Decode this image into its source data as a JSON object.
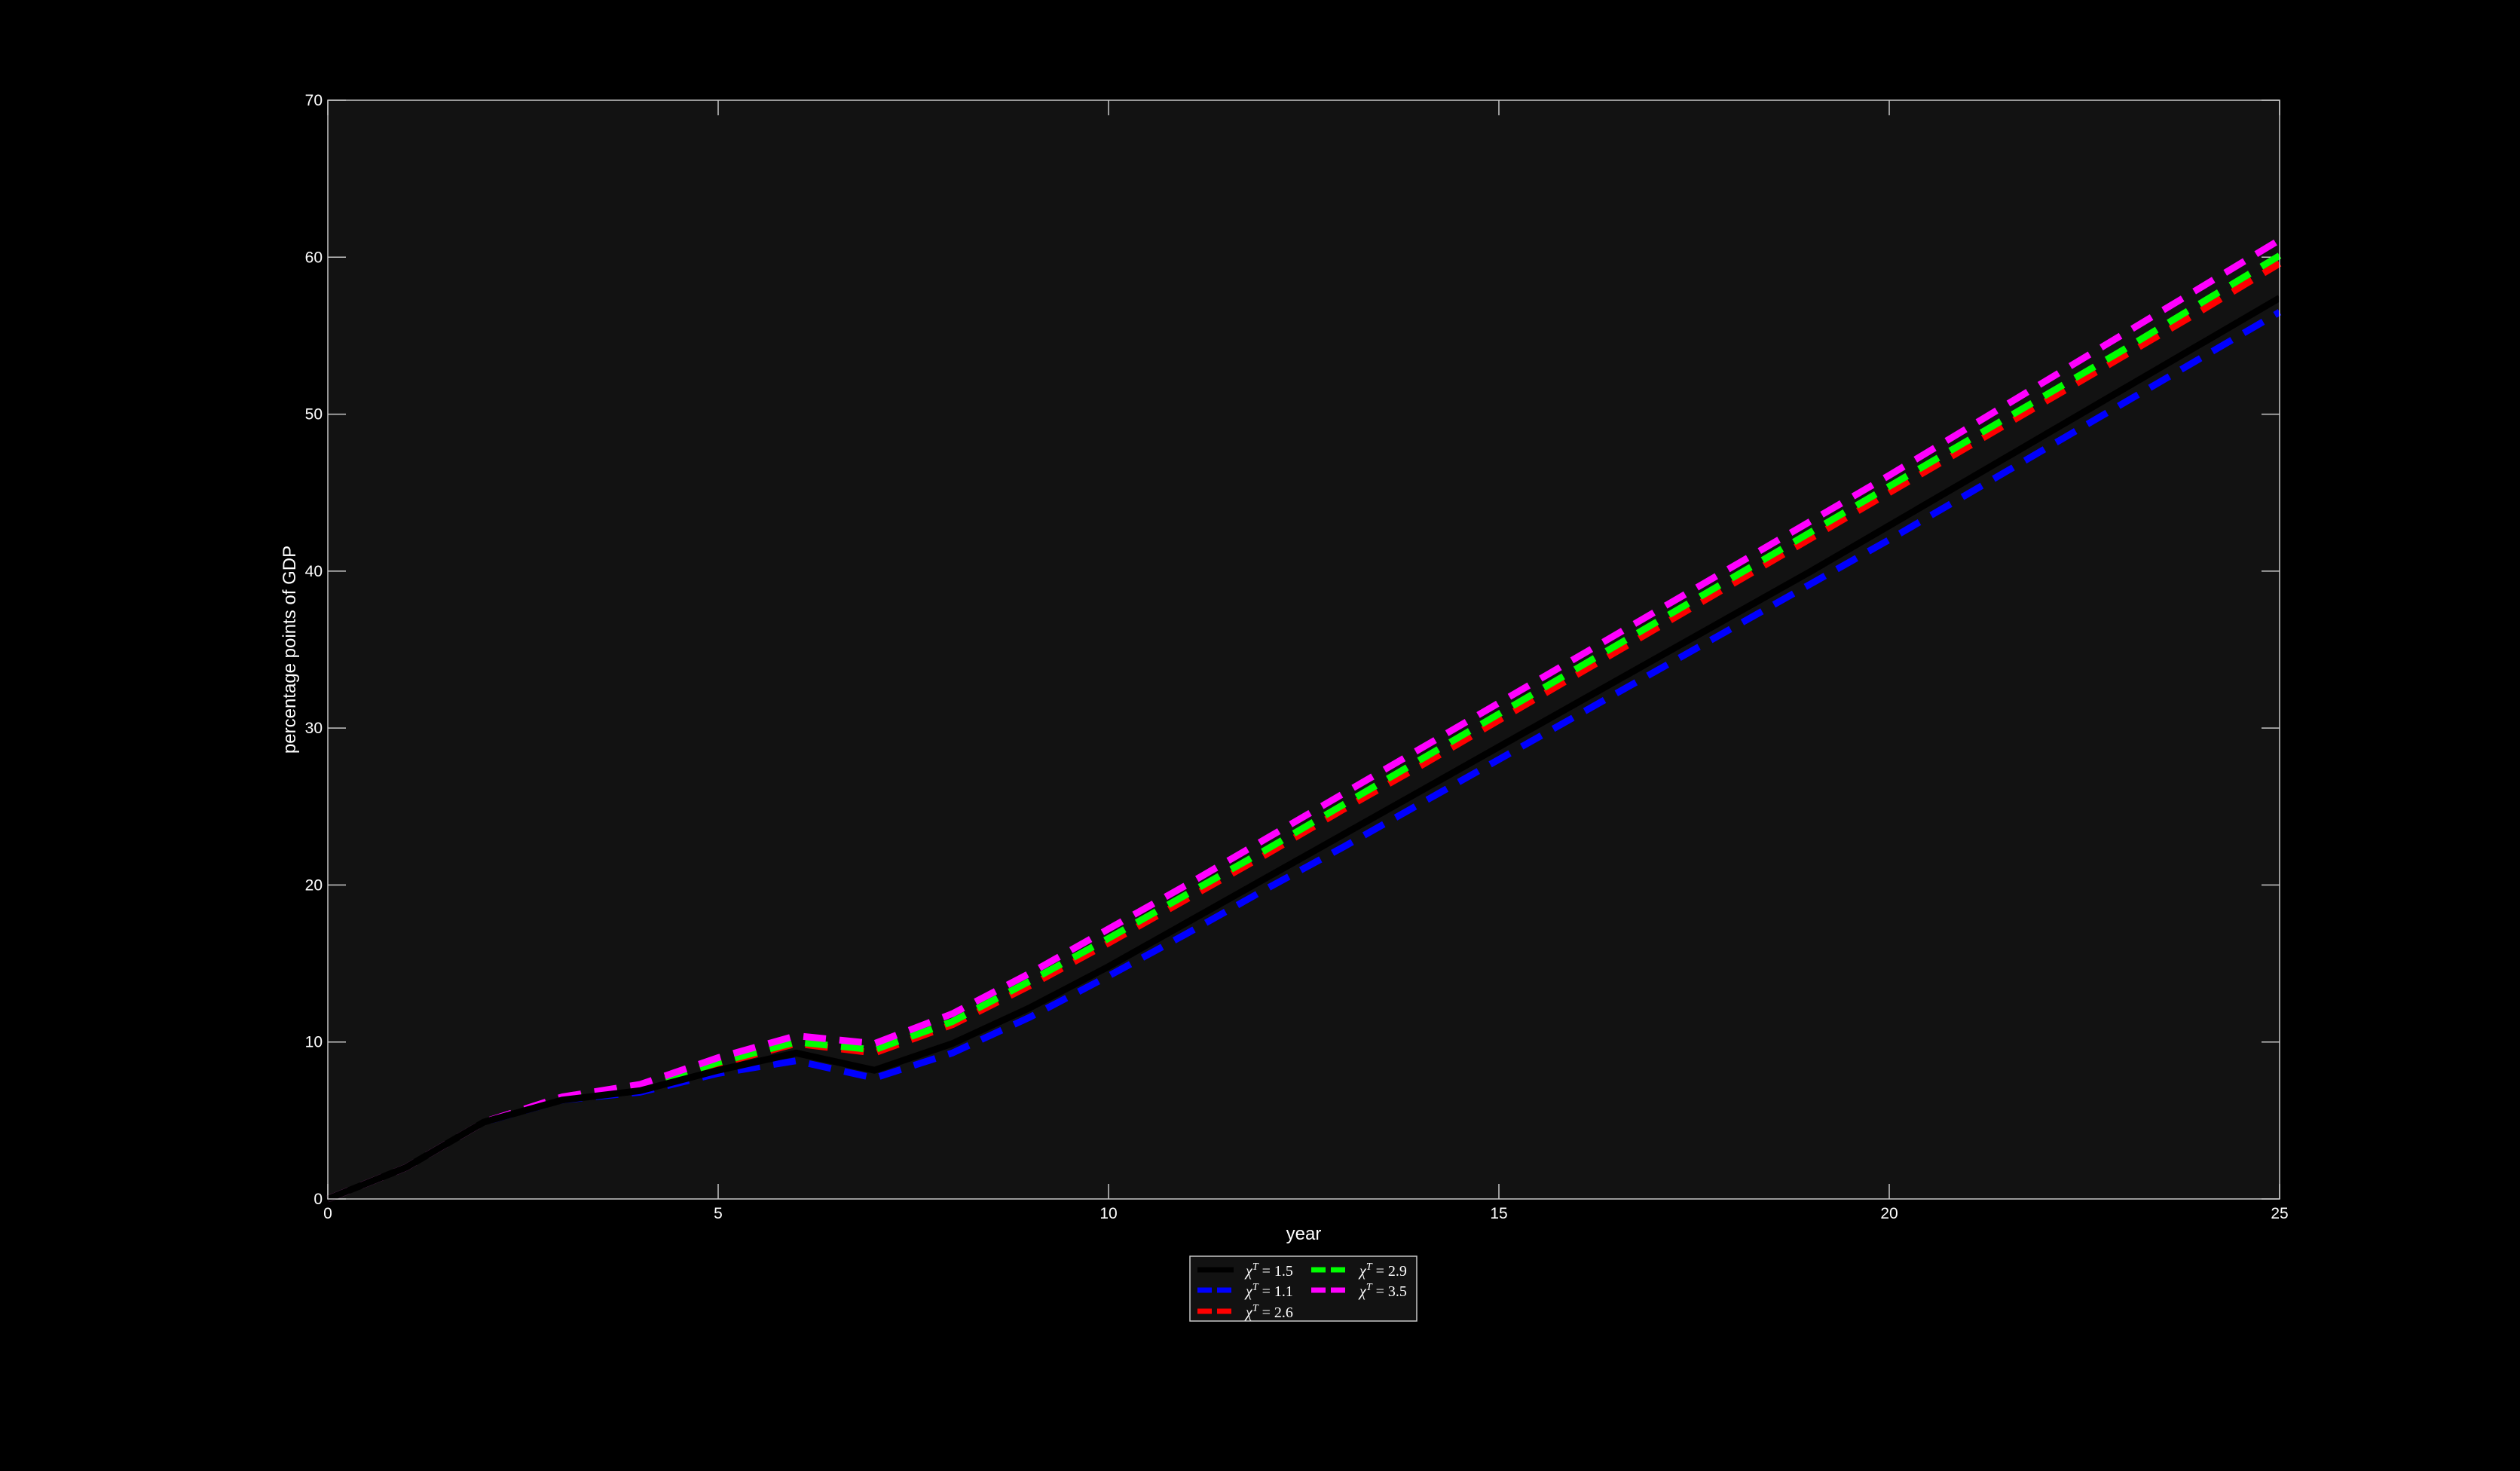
{
  "chart_data": {
    "type": "line",
    "title": "",
    "xlabel": "year",
    "ylabel": "percentage points of GDP",
    "xlim": [
      0,
      25
    ],
    "ylim": [
      0,
      70
    ],
    "xticks": [
      "0",
      "5",
      "10",
      "15",
      "20",
      "25"
    ],
    "yticks": [
      "0",
      "10",
      "20",
      "30",
      "40",
      "50",
      "60",
      "70"
    ],
    "grid": false,
    "legend_placement": "bottom-center",
    "background": "#121212",
    "x": [
      0,
      1,
      2,
      3,
      4,
      5,
      6,
      7,
      8,
      9,
      10,
      11,
      12,
      13,
      14,
      15,
      16,
      17,
      18,
      19,
      20,
      21,
      22,
      23,
      24,
      25
    ],
    "series": [
      {
        "name": "χ^T = 1.5",
        "legend_label": "χ",
        "legend_sup": "T",
        "legend_val": "= 1.5",
        "color": "#000000",
        "dash": "solid",
        "values": [
          0,
          2,
          4.9,
          6.3,
          6.9,
          8.2,
          9.3,
          8.2,
          9.9,
          12.2,
          14.8,
          17.6,
          20.4,
          23.2,
          26,
          28.8,
          31.6,
          34.4,
          37.2,
          40,
          42.9,
          45.8,
          48.7,
          51.6,
          54.5,
          57.4
        ]
      },
      {
        "name": "χ^T = 1.1",
        "legend_label": "χ",
        "legend_sup": "T",
        "legend_val": "= 1.1",
        "color": "#0000ff",
        "dash": "dashed",
        "values": [
          0,
          2,
          4.9,
          6.3,
          6.8,
          8,
          8.8,
          7.7,
          9.3,
          11.6,
          14.2,
          16.9,
          19.7,
          22.4,
          25.2,
          28,
          30.8,
          33.6,
          36.4,
          39.2,
          42,
          44.9,
          47.8,
          50.7,
          53.6,
          56.5
        ]
      },
      {
        "name": "χ^T = 2.6",
        "legend_label": "χ",
        "legend_sup": "T",
        "legend_val": "= 2.6",
        "color": "#ff0000",
        "dash": "dashed",
        "values": [
          0,
          2,
          4.9,
          6.4,
          7.1,
          8.6,
          9.9,
          9.3,
          11.1,
          13.6,
          16.3,
          19.1,
          21.9,
          24.8,
          27.6,
          30.5,
          33.4,
          36.3,
          39.2,
          42.1,
          45,
          47.9,
          50.8,
          53.7,
          56.6,
          59.6
        ]
      },
      {
        "name": "χ^T = 2.9",
        "legend_label": "χ",
        "legend_sup": "T",
        "legend_val": "= 2.9",
        "color": "#00ff00",
        "dash": "dashed",
        "values": [
          0,
          2,
          4.9,
          6.4,
          7.1,
          8.7,
          10,
          9.5,
          11.3,
          13.9,
          16.6,
          19.4,
          22.2,
          25.1,
          28,
          30.9,
          33.8,
          36.7,
          39.6,
          42.5,
          45.4,
          48.3,
          51.2,
          54.1,
          57.1,
          60.1
        ]
      },
      {
        "name": "χ^T = 3.5",
        "legend_label": "χ",
        "legend_sup": "T",
        "legend_val": "= 3.5",
        "color": "#ff00ff",
        "dash": "dashed",
        "values": [
          0,
          2,
          4.9,
          6.5,
          7.3,
          9,
          10.4,
          9.9,
          11.8,
          14.4,
          17.2,
          20,
          22.9,
          25.8,
          28.7,
          31.6,
          34.5,
          37.4,
          40.3,
          43.2,
          46.1,
          49.1,
          52.1,
          55.1,
          58.1,
          61.1
        ]
      }
    ]
  }
}
